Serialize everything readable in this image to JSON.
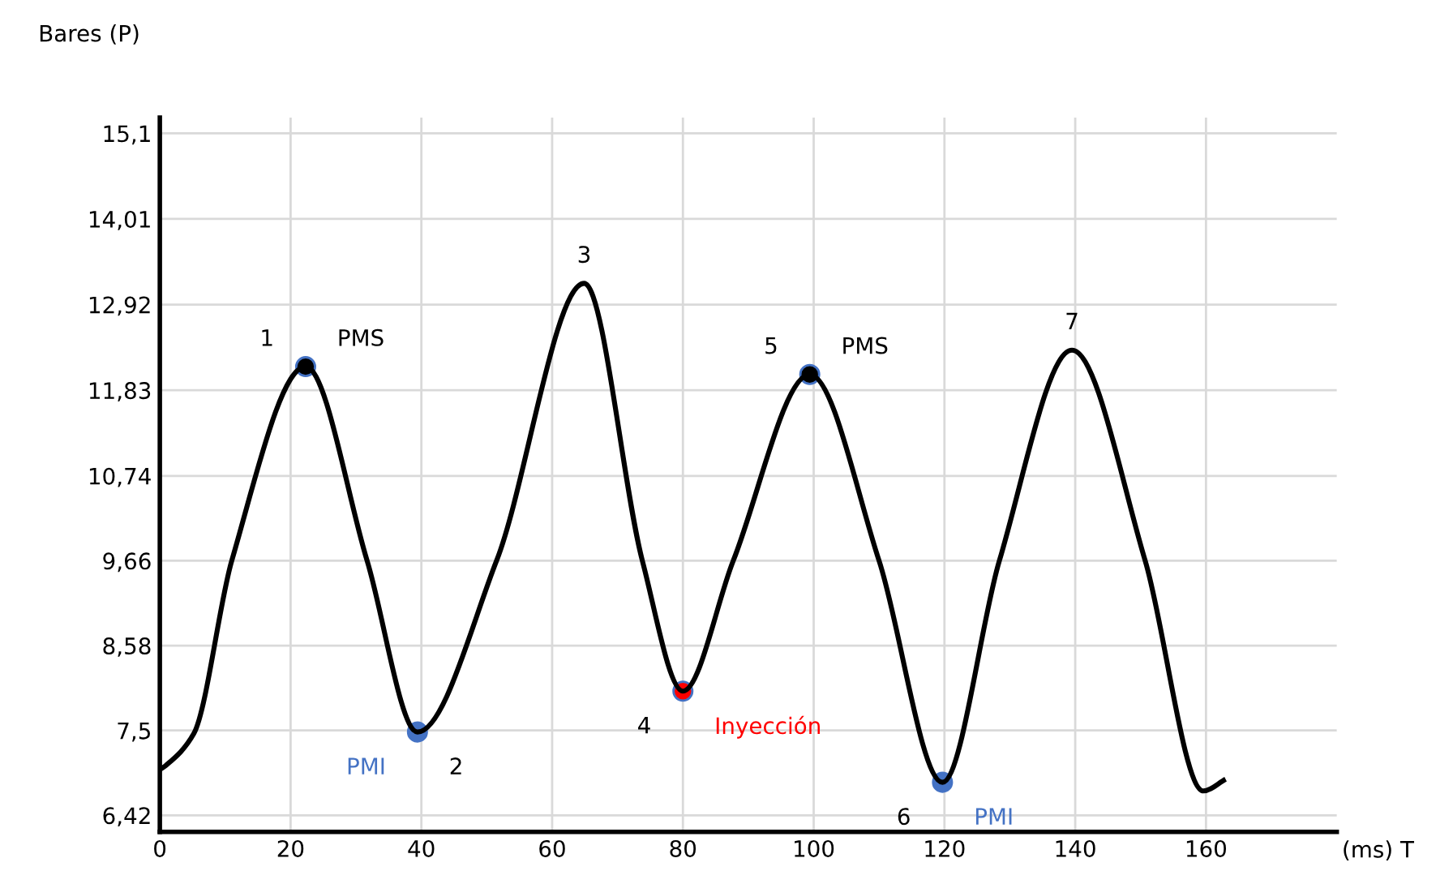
{
  "chart_data": {
    "type": "line",
    "xlabel": "(ms) T",
    "ylabel": "Bares (P)",
    "xlim": [
      0,
      180
    ],
    "xticks": [
      0,
      20,
      40,
      60,
      80,
      100,
      120,
      140,
      160
    ],
    "ylim": [
      6.21,
      15.3
    ],
    "yticks": [
      {
        "value": 6.42,
        "label": "6,42"
      },
      {
        "value": 7.5,
        "label": "7,5"
      },
      {
        "value": 8.58,
        "label": "8,58"
      },
      {
        "value": 9.66,
        "label": "9,66"
      },
      {
        "value": 10.74,
        "label": "10,74"
      },
      {
        "value": 11.83,
        "label": "11,83"
      },
      {
        "value": 12.92,
        "label": "12,92"
      },
      {
        "value": 14.01,
        "label": "14,01"
      },
      {
        "value": 15.1,
        "label": "15,1"
      }
    ],
    "grid": true,
    "series": [
      {
        "color": "#000000",
        "x": [
          0,
          1,
          5.2,
          11,
          22.3,
          31.7,
          39.4,
          51.5,
          64.9,
          73.8,
          80,
          87.7,
          99.4,
          110,
          119.7,
          128.4,
          139.5,
          150.7,
          159.6,
          163
        ],
        "values": [
          7.0,
          7.06,
          7.46,
          9.66,
          12.13,
          9.66,
          7.48,
          9.66,
          13.19,
          9.66,
          8.0,
          9.66,
          12.03,
          9.66,
          6.84,
          9.66,
          12.34,
          9.66,
          6.73,
          6.88
        ]
      },
      {
        "type": "scatter",
        "x": [
          22.3,
          39.4,
          80,
          99.4,
          119.7
        ],
        "values": [
          12.13,
          7.48,
          8.0,
          12.03,
          6.84
        ],
        "colors": [
          "#000000",
          "#4472c4",
          "#ff0000",
          "#000000",
          "#4472c4"
        ]
      }
    ],
    "annotations": [
      {
        "text": "1",
        "x": 22.3,
        "y": 12.13
      },
      {
        "text": "PMS",
        "x": 22.3,
        "y": 12.13
      },
      {
        "text": "PMI",
        "x": 39.4,
        "y": 7.48
      },
      {
        "text": "2",
        "x": 39.4,
        "y": 7.48
      },
      {
        "text": "3",
        "x": 64.9,
        "y": 13.19
      },
      {
        "text": "4",
        "x": 80,
        "y": 8.0
      },
      {
        "text": "Inyección",
        "x": 80,
        "y": 8.0
      },
      {
        "text": "5",
        "x": 99.4,
        "y": 12.03
      },
      {
        "text": "PMS",
        "x": 99.4,
        "y": 12.03
      },
      {
        "text": "6",
        "x": 119.7,
        "y": 6.84
      },
      {
        "text": "PMI",
        "x": 119.7,
        "y": 6.84
      },
      {
        "text": "7",
        "x": 139.5,
        "y": 12.34
      }
    ]
  }
}
